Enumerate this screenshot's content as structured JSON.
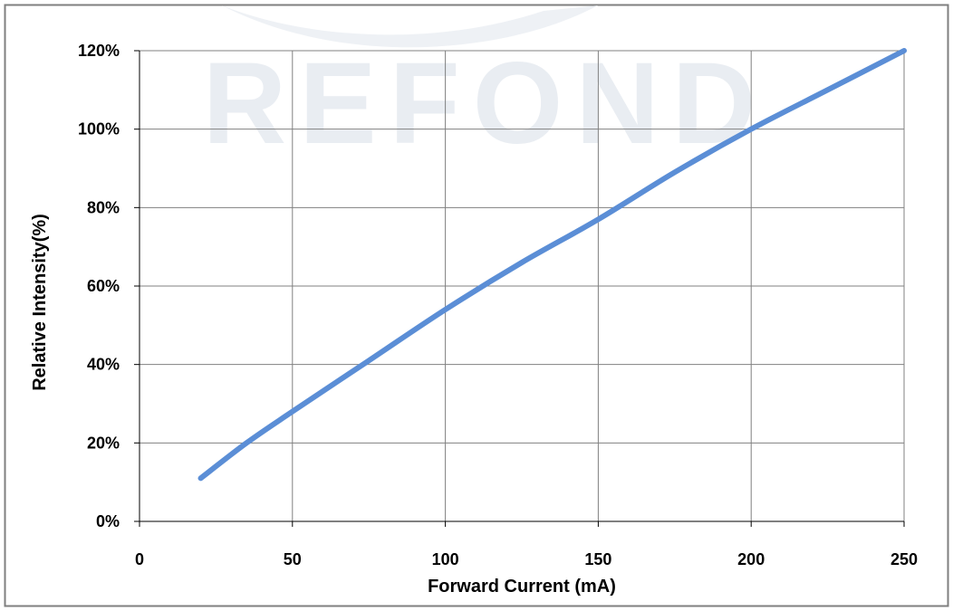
{
  "watermark": {
    "text": "REFOND"
  },
  "chart_data": {
    "type": "line",
    "title": "",
    "xlabel": "Forward Current (mA)",
    "ylabel": "Relative Intensity(%)",
    "xlim": [
      0,
      250
    ],
    "ylim": [
      0,
      120
    ],
    "x_ticks": [
      0,
      50,
      100,
      150,
      200,
      250
    ],
    "y_ticks": [
      0,
      20,
      40,
      60,
      80,
      100,
      120
    ],
    "x_tick_labels": [
      "0",
      "50",
      "100",
      "150",
      "200",
      "250"
    ],
    "y_tick_labels": [
      "0%",
      "20%",
      "40%",
      "60%",
      "80%",
      "100%",
      "120%"
    ],
    "grid": true,
    "legend": "none",
    "series": [
      {
        "color": "#5B8ED6",
        "x": [
          20,
          35,
          50,
          75,
          100,
          125,
          150,
          175,
          200,
          225,
          250
        ],
        "y": [
          11,
          20,
          28,
          41,
          54,
          66,
          77,
          89,
          100,
          110,
          120
        ]
      }
    ],
    "colors": {
      "frame": "#7F7F7F",
      "grid": "#808080",
      "axis": "#000000",
      "watermark": "#E9EDF2"
    }
  }
}
